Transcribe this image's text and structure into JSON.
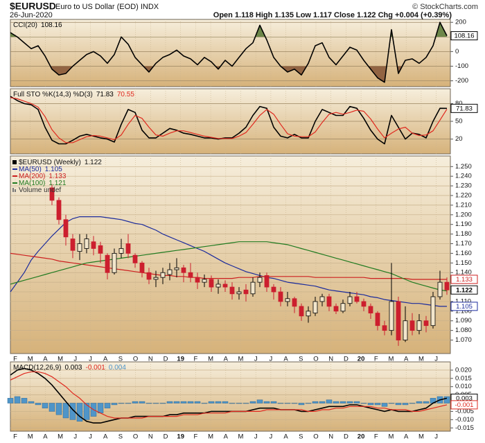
{
  "header": {
    "symbol": "$EURUSD",
    "name": "Euro to US Dollar (EOD) INDX",
    "date": "26-Jun-2020",
    "quote": "Open 1.118  High 1.135  Low 1.117  Close 1.122  Chg +0.004 (+0.39%)",
    "credit": "© StockCharts.com"
  },
  "chart_data": [
    {
      "type": "line",
      "title": "CCI(20)",
      "ylim": [
        -240,
        220
      ],
      "yticks": [
        200,
        100,
        0,
        -100,
        -200
      ],
      "grid": true,
      "grid_color": "#9a8460",
      "fills": [
        {
          "level": 100,
          "side": "above",
          "color": "#5e7d3c"
        },
        {
          "level": -100,
          "side": "below",
          "color": "#8a5a3a"
        }
      ],
      "series": [
        {
          "color": "#000000",
          "box": true,
          "values": [
            130,
            100,
            60,
            20,
            40,
            -30,
            -120,
            -160,
            -150,
            -100,
            -60,
            -20,
            0,
            -30,
            -80,
            -20,
            100,
            50,
            -40,
            -90,
            -140,
            -80,
            -40,
            -20,
            10,
            -30,
            -50,
            -90,
            -40,
            -70,
            -120,
            -60,
            -100,
            -40,
            20,
            60,
            180,
            80,
            -40,
            -100,
            -140,
            -120,
            -160,
            -80,
            40,
            60,
            -40,
            -90,
            -30,
            30,
            10,
            -60,
            -120,
            -180,
            -210,
            150,
            -150,
            -60,
            -50,
            -80,
            -40,
            40,
            200,
            108.16
          ]
        }
      ]
    },
    {
      "type": "line",
      "title": "Full STO %K(14,3) %D(3)",
      "ylim": [
        -5,
        105
      ],
      "yticks": [
        80,
        50,
        20
      ],
      "grid": true,
      "grid_color": "#9a8460",
      "series": [
        {
          "color": "#000000",
          "box": true,
          "values": [
            92,
            85,
            80,
            78,
            70,
            40,
            18,
            12,
            12,
            18,
            25,
            28,
            25,
            22,
            20,
            15,
            45,
            70,
            65,
            35,
            22,
            22,
            30,
            38,
            35,
            30,
            28,
            25,
            22,
            22,
            20,
            22,
            22,
            30,
            40,
            60,
            75,
            72,
            40,
            25,
            22,
            28,
            22,
            22,
            50,
            70,
            65,
            60,
            60,
            75,
            72,
            55,
            35,
            20,
            12,
            60,
            40,
            20,
            30,
            28,
            22,
            50,
            72,
            71.83
          ]
        },
        {
          "color": "#e0281e",
          "values": [
            90,
            88,
            84,
            80,
            74,
            58,
            36,
            22,
            14,
            14,
            19,
            24,
            26,
            25,
            22,
            19,
            27,
            45,
            60,
            55,
            40,
            27,
            25,
            30,
            34,
            34,
            31,
            28,
            25,
            23,
            21,
            21,
            21,
            25,
            31,
            45,
            60,
            70,
            62,
            45,
            29,
            25,
            24,
            24,
            32,
            48,
            62,
            65,
            62,
            65,
            69,
            67,
            54,
            37,
            22,
            30,
            37,
            40,
            30,
            26,
            27,
            34,
            52,
            70.55
          ]
        }
      ]
    },
    {
      "type": "candlestick",
      "name": "$EURUSD (Weekly)",
      "volume_note": "Volume undef",
      "ylim": [
        1.056,
        1.261
      ],
      "grid": true,
      "grid_color": "#c8b08a",
      "yticks": [
        {
          "value": 1.07,
          "label": "1.070"
        },
        {
          "value": 1.08,
          "label": "1.080"
        },
        {
          "value": 1.09,
          "label": "1.090"
        },
        {
          "value": 1.1,
          "label": "1.100"
        },
        {
          "value": 1.11,
          "label": "1.110"
        },
        {
          "value": 1.12,
          "label": "1.120"
        },
        {
          "value": 1.13,
          "label": "1.130"
        },
        {
          "value": 1.14,
          "label": "1.140"
        },
        {
          "value": 1.15,
          "label": "1.150"
        },
        {
          "value": 1.16,
          "label": "1.160"
        },
        {
          "value": 1.17,
          "label": "1.170"
        },
        {
          "value": 1.18,
          "label": "1.180"
        },
        {
          "value": 1.19,
          "label": "1.190"
        },
        {
          "value": 1.2,
          "label": "1.200"
        },
        {
          "value": 1.21,
          "label": "1.210"
        },
        {
          "value": 1.22,
          "label": "1.220"
        },
        {
          "value": 1.23,
          "label": "1.230"
        },
        {
          "value": 1.24,
          "label": "1.240"
        },
        {
          "value": 1.25,
          "label": "1.250"
        }
      ],
      "months": [
        "F",
        "M",
        "A",
        "M",
        "J",
        "J",
        "A",
        "S",
        "O",
        "N",
        "D",
        "19",
        "F",
        "M",
        "A",
        "M",
        "J",
        "J",
        "A",
        "S",
        "O",
        "N",
        "D",
        "20",
        "F",
        "M",
        "A",
        "M",
        "J"
      ],
      "candles": {
        "up_color": "#000000",
        "down_color": "#cc1f2e",
        "box": true,
        "open": [
          null,
          null,
          null,
          null,
          null,
          null,
          1.228,
          1.215,
          1.195,
          1.175,
          1.162,
          1.165,
          1.172,
          1.168,
          1.158,
          1.14,
          1.16,
          1.17,
          1.158,
          1.15,
          1.14,
          1.133,
          1.135,
          1.138,
          1.143,
          1.145,
          1.14,
          1.135,
          1.13,
          1.133,
          1.125,
          1.128,
          1.125,
          1.118,
          1.122,
          1.118,
          1.13,
          1.137,
          1.125,
          1.12,
          1.11,
          1.113,
          1.105,
          1.095,
          1.098,
          1.11,
          1.115,
          1.105,
          1.1,
          1.108,
          1.115,
          1.11,
          1.105,
          1.098,
          1.085,
          1.08,
          1.11,
          1.07,
          1.09,
          1.08,
          1.09,
          1.085,
          1.115,
          1.13
        ],
        "high": [
          null,
          null,
          null,
          null,
          null,
          null,
          1.232,
          1.218,
          1.2,
          1.18,
          1.18,
          1.18,
          1.178,
          1.172,
          1.16,
          1.165,
          1.175,
          1.18,
          1.16,
          1.152,
          1.145,
          1.142,
          1.145,
          1.15,
          1.155,
          1.148,
          1.15,
          1.14,
          1.138,
          1.137,
          1.133,
          1.132,
          1.13,
          1.125,
          1.128,
          1.135,
          1.14,
          1.14,
          1.128,
          1.125,
          1.12,
          1.115,
          1.108,
          1.105,
          1.115,
          1.118,
          1.118,
          1.108,
          1.112,
          1.12,
          1.12,
          1.113,
          1.108,
          1.1,
          1.09,
          1.15,
          1.115,
          1.105,
          1.098,
          1.097,
          1.095,
          1.12,
          1.142,
          1.135
        ],
        "low": [
          null,
          null,
          null,
          null,
          null,
          null,
          1.21,
          1.19,
          1.168,
          1.155,
          1.153,
          1.16,
          1.158,
          1.15,
          1.133,
          1.138,
          1.155,
          1.155,
          1.145,
          1.135,
          1.128,
          1.125,
          1.128,
          1.132,
          1.135,
          1.13,
          1.13,
          1.123,
          1.125,
          1.12,
          1.118,
          1.12,
          1.112,
          1.112,
          1.11,
          1.115,
          1.125,
          1.12,
          1.112,
          1.105,
          1.105,
          1.098,
          1.09,
          1.088,
          1.095,
          1.105,
          1.1,
          1.097,
          1.098,
          1.105,
          1.108,
          1.1,
          1.092,
          1.08,
          1.075,
          1.075,
          1.064,
          1.068,
          1.075,
          1.076,
          1.078,
          1.082,
          1.112,
          1.117
        ],
        "close": [
          null,
          null,
          null,
          null,
          null,
          null,
          1.215,
          1.195,
          1.177,
          1.163,
          1.17,
          1.175,
          1.165,
          1.16,
          1.14,
          1.16,
          1.165,
          1.16,
          1.15,
          1.14,
          1.133,
          1.135,
          1.14,
          1.143,
          1.145,
          1.14,
          1.135,
          1.13,
          1.133,
          1.125,
          1.128,
          1.125,
          1.118,
          1.12,
          1.118,
          1.13,
          1.135,
          1.125,
          1.12,
          1.11,
          1.113,
          1.105,
          1.095,
          1.1,
          1.11,
          1.115,
          1.105,
          1.1,
          1.108,
          1.115,
          1.11,
          1.105,
          1.098,
          1.085,
          1.08,
          1.11,
          1.07,
          1.09,
          1.08,
          1.09,
          1.085,
          1.115,
          1.13,
          1.122
        ]
      },
      "series": [
        {
          "name": "MA(50)",
          "color": "#1a2a9c",
          "box": true,
          "values": [
            1.12,
            1.13,
            1.14,
            1.153,
            1.162,
            1.17,
            1.178,
            1.185,
            1.192,
            1.196,
            1.198,
            1.198,
            1.198,
            1.198,
            1.197,
            1.196,
            1.195,
            1.193,
            1.191,
            1.19,
            1.187,
            1.184,
            1.18,
            1.177,
            1.174,
            1.171,
            1.168,
            1.165,
            1.162,
            1.158,
            1.154,
            1.15,
            1.147,
            1.144,
            1.141,
            1.139,
            1.137,
            1.135,
            1.134,
            1.132,
            1.13,
            1.129,
            1.128,
            1.127,
            1.126,
            1.124,
            1.122,
            1.121,
            1.12,
            1.119,
            1.118,
            1.117,
            1.115,
            1.114,
            1.112,
            1.111,
            1.11,
            1.109,
            1.108,
            1.108,
            1.107,
            1.106,
            1.105,
            1.105
          ]
        },
        {
          "name": "MA(200)",
          "color": "#cc1f1f",
          "box": true,
          "values": [
            1.16,
            1.159,
            1.158,
            1.157,
            1.156,
            1.155,
            1.154,
            1.152,
            1.151,
            1.15,
            1.149,
            1.148,
            1.147,
            1.146,
            1.145,
            1.144,
            1.143,
            1.142,
            1.141,
            1.14,
            1.139,
            1.138,
            1.137,
            1.137,
            1.136,
            1.136,
            1.135,
            1.135,
            1.134,
            1.134,
            1.134,
            1.134,
            1.134,
            1.135,
            1.135,
            1.135,
            1.136,
            1.136,
            1.136,
            1.136,
            1.136,
            1.136,
            1.136,
            1.136,
            1.135,
            1.135,
            1.135,
            1.135,
            1.135,
            1.135,
            1.135,
            1.135,
            1.134,
            1.134,
            1.134,
            1.134,
            1.134,
            1.134,
            1.133,
            1.133,
            1.133,
            1.133,
            1.133,
            1.133
          ]
        },
        {
          "name": "MA(100)",
          "color": "#1f7a1f",
          "values": [
            1.128,
            1.13,
            1.132,
            1.134,
            1.136,
            1.138,
            1.14,
            1.142,
            1.144,
            1.146,
            1.148,
            1.15,
            1.151,
            1.152,
            1.153,
            1.154,
            1.155,
            1.156,
            1.157,
            1.158,
            1.159,
            1.16,
            1.161,
            1.162,
            1.163,
            1.164,
            1.165,
            1.166,
            1.167,
            1.168,
            1.169,
            1.17,
            1.171,
            1.172,
            1.172,
            1.172,
            1.172,
            1.172,
            1.171,
            1.17,
            1.169,
            1.167,
            1.165,
            1.163,
            1.161,
            1.159,
            1.157,
            1.155,
            1.153,
            1.151,
            1.149,
            1.147,
            1.145,
            1.143,
            1.141,
            1.139,
            1.136,
            1.133,
            1.13,
            1.128,
            1.126,
            1.124,
            1.122,
            1.121
          ]
        }
      ]
    },
    {
      "type": "macd",
      "title": "MACD(12,26,9)",
      "ylim": [
        -0.017,
        0.025
      ],
      "grid": true,
      "grid_color": "#c8b08a",
      "yticks": [
        {
          "value": 0.02,
          "label": "0.020"
        },
        0.015,
        {
          "value": 0.01,
          "label": "0.010"
        },
        0.005,
        {
          "value": 0,
          "label": "0.000"
        },
        -0.005,
        {
          "value": -0.01,
          "label": "-0.010"
        },
        -0.015
      ],
      "months": [
        "F",
        "M",
        "A",
        "M",
        "J",
        "J",
        "A",
        "S",
        "O",
        "N",
        "D",
        "19",
        "F",
        "M",
        "A",
        "M",
        "J",
        "J",
        "A",
        "S",
        "O",
        "N",
        "D",
        "20",
        "F",
        "M",
        "A",
        "M",
        "J"
      ],
      "series": [
        {
          "color": "#000000",
          "box": true,
          "values": [
            0.017,
            0.02,
            0.021,
            0.02,
            0.018,
            0.015,
            0.011,
            0.006,
            0.001,
            -0.004,
            -0.008,
            -0.011,
            -0.012,
            -0.012,
            -0.011,
            -0.01,
            -0.009,
            -0.009,
            -0.008,
            -0.008,
            -0.008,
            -0.008,
            -0.008,
            -0.007,
            -0.007,
            -0.006,
            -0.006,
            -0.006,
            -0.006,
            -0.005,
            -0.005,
            -0.005,
            -0.005,
            -0.005,
            -0.005,
            -0.004,
            -0.003,
            -0.003,
            -0.003,
            -0.004,
            -0.004,
            -0.004,
            -0.005,
            -0.005,
            -0.004,
            -0.003,
            -0.002,
            -0.002,
            -0.002,
            -0.001,
            -0.001,
            -0.002,
            -0.003,
            -0.004,
            -0.005,
            -0.004,
            -0.005,
            -0.005,
            -0.005,
            -0.004,
            -0.003,
            0,
            0.002,
            0.003
          ]
        },
        {
          "color": "#e0281e",
          "box": true,
          "values": [
            0.014,
            0.016,
            0.018,
            0.019,
            0.019,
            0.018,
            0.016,
            0.013,
            0.01,
            0.006,
            0.003,
            -0.001,
            -0.004,
            -0.006,
            -0.008,
            -0.009,
            -0.009,
            -0.009,
            -0.009,
            -0.009,
            -0.008,
            -0.008,
            -0.008,
            -0.008,
            -0.008,
            -0.007,
            -0.007,
            -0.007,
            -0.006,
            -0.006,
            -0.006,
            -0.006,
            -0.005,
            -0.005,
            -0.005,
            -0.005,
            -0.005,
            -0.004,
            -0.004,
            -0.004,
            -0.004,
            -0.004,
            -0.004,
            -0.005,
            -0.005,
            -0.004,
            -0.004,
            -0.003,
            -0.003,
            -0.002,
            -0.002,
            -0.002,
            -0.002,
            -0.003,
            -0.003,
            -0.004,
            -0.004,
            -0.004,
            -0.005,
            -0.005,
            -0.004,
            -0.003,
            -0.002,
            -0.001
          ]
        },
        {
          "color": "#4f95c8",
          "values": [
            0.003,
            0.004,
            0.003,
            0.001,
            -0.001,
            -0.003,
            -0.005,
            -0.007,
            -0.009,
            -0.01,
            -0.011,
            -0.01,
            -0.008,
            -0.006,
            -0.003,
            -0.001,
            0,
            0,
            0.001,
            0.001,
            0,
            0,
            0,
            0.001,
            0.001,
            0.001,
            0.001,
            0.001,
            0,
            0.001,
            0.001,
            0.001,
            0,
            0,
            0,
            0.001,
            0.002,
            0.001,
            0.001,
            0,
            0,
            0,
            -0.001,
            0,
            0.001,
            0.001,
            0.002,
            0.001,
            0.001,
            0.001,
            0.001,
            0,
            -0.001,
            -0.001,
            -0.002,
            0,
            -0.001,
            -0.001,
            0,
            0.001,
            0.001,
            0.003,
            0.004,
            0.004
          ]
        }
      ]
    }
  ]
}
